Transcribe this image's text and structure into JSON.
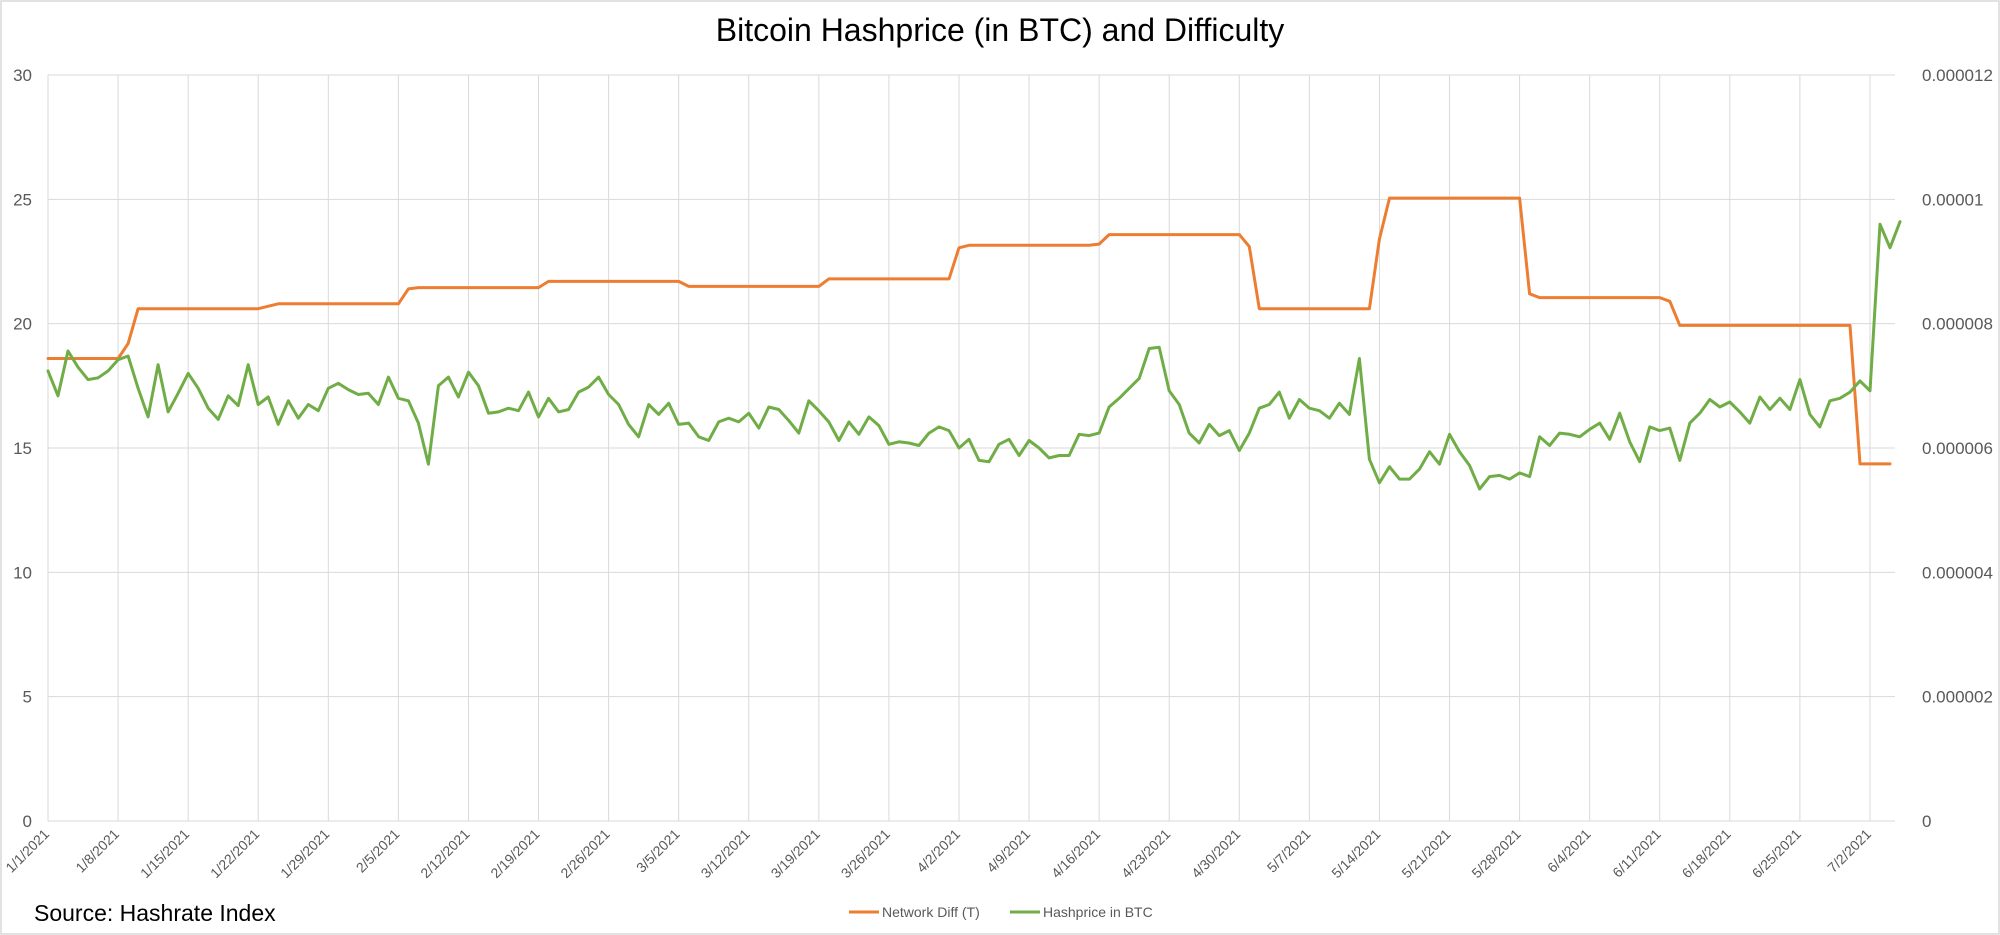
{
  "chart_data": {
    "type": "line",
    "title": "Bitcoin Hashprice (in BTC) and Difficulty",
    "source": "Source: Hashrate Index",
    "grid": true,
    "legend_position": "bottom",
    "y_left": {
      "min": 0,
      "max": 30,
      "ticks": [
        "0",
        "5",
        "10",
        "15",
        "20",
        "25",
        "30"
      ]
    },
    "y_right": {
      "min": 0,
      "max": 1.2e-05,
      "ticks": [
        "0",
        "0.000002",
        "0.000004",
        "0.000006",
        "0.000008",
        "0.00001",
        "0.000012"
      ]
    },
    "x_ticks": [
      "1/1/2021",
      "1/8/2021",
      "1/15/2021",
      "1/22/2021",
      "1/29/2021",
      "2/5/2021",
      "2/12/2021",
      "2/19/2021",
      "2/26/2021",
      "3/5/2021",
      "3/12/2021",
      "3/19/2021",
      "3/26/2021",
      "4/2/2021",
      "4/9/2021",
      "4/16/2021",
      "4/23/2021",
      "4/30/2021",
      "5/7/2021",
      "5/14/2021",
      "5/21/2021",
      "5/28/2021",
      "6/4/2021",
      "6/11/2021",
      "6/18/2021",
      "6/25/2021",
      "7/2/2021"
    ],
    "x_start": "1/1/2021",
    "series": [
      {
        "name": "Network Diff (T)",
        "axis": "left",
        "color": "#ed7d31",
        "points": [
          [
            "1/1/2021",
            18.6
          ],
          [
            "1/8/2021",
            18.6
          ],
          [
            "1/9/2021",
            19.2
          ],
          [
            "1/10/2021",
            20.6
          ],
          [
            "1/22/2021",
            20.6
          ],
          [
            "1/24/2021",
            20.8
          ],
          [
            "2/5/2021",
            20.8
          ],
          [
            "2/6/2021",
            21.4
          ],
          [
            "2/7/2021",
            21.45
          ],
          [
            "2/19/2021",
            21.45
          ],
          [
            "2/20/2021",
            21.7
          ],
          [
            "3/5/2021",
            21.7
          ],
          [
            "3/6/2021",
            21.5
          ],
          [
            "3/19/2021",
            21.5
          ],
          [
            "3/20/2021",
            21.8
          ],
          [
            "4/1/2021",
            21.8
          ],
          [
            "4/2/2021",
            23.05
          ],
          [
            "4/3/2021",
            23.15
          ],
          [
            "4/15/2021",
            23.15
          ],
          [
            "4/16/2021",
            23.2
          ],
          [
            "4/17/2021",
            23.58
          ],
          [
            "4/30/2021",
            23.58
          ],
          [
            "5/1/2021",
            23.1
          ],
          [
            "5/2/2021",
            20.6
          ],
          [
            "5/13/2021",
            20.6
          ],
          [
            "5/14/2021",
            23.4
          ],
          [
            "5/15/2021",
            25.05
          ],
          [
            "5/28/2021",
            25.05
          ],
          [
            "5/29/2021",
            21.2
          ],
          [
            "5/30/2021",
            21.05
          ],
          [
            "6/11/2021",
            21.05
          ],
          [
            "6/12/2021",
            20.9
          ],
          [
            "6/13/2021",
            19.93
          ],
          [
            "6/30/2021",
            19.93
          ],
          [
            "7/1/2021",
            14.36
          ],
          [
            "7/4/2021",
            14.36
          ]
        ]
      },
      {
        "name": "Hashprice in BTC",
        "axis": "right",
        "color": "#70ad47",
        "values_start": "1/1/2021",
        "values": [
          7.24e-06,
          6.84e-06,
          7.56e-06,
          7.3e-06,
          7.1e-06,
          7.13e-06,
          7.24e-06,
          7.42e-06,
          7.48e-06,
          6.96e-06,
          6.5e-06,
          7.34e-06,
          6.58e-06,
          6.88e-06,
          7.2e-06,
          6.96e-06,
          6.64e-06,
          6.46e-06,
          6.84e-06,
          6.68e-06,
          7.34e-06,
          6.7e-06,
          6.82e-06,
          6.38e-06,
          6.76e-06,
          6.48e-06,
          6.7e-06,
          6.6e-06,
          6.96e-06,
          7.04e-06,
          6.94e-06,
          6.86e-06,
          6.88e-06,
          6.7e-06,
          7.14e-06,
          6.8e-06,
          6.76e-06,
          6.4e-06,
          5.74e-06,
          7e-06,
          7.14e-06,
          6.82e-06,
          7.22e-06,
          7e-06,
          6.56e-06,
          6.58e-06,
          6.64e-06,
          6.6e-06,
          6.9e-06,
          6.5e-06,
          6.8e-06,
          6.58e-06,
          6.62e-06,
          6.9e-06,
          6.98e-06,
          7.14e-06,
          6.86e-06,
          6.7e-06,
          6.38e-06,
          6.18e-06,
          6.7e-06,
          6.54e-06,
          6.72e-06,
          6.38e-06,
          6.4e-06,
          6.18e-06,
          6.12e-06,
          6.42e-06,
          6.48e-06,
          6.42e-06,
          6.56e-06,
          6.32e-06,
          6.66e-06,
          6.62e-06,
          6.44e-06,
          6.24e-06,
          6.76e-06,
          6.6e-06,
          6.42e-06,
          6.12e-06,
          6.42e-06,
          6.22e-06,
          6.5e-06,
          6.36e-06,
          6.06e-06,
          6.1e-06,
          6.08e-06,
          6.04e-06,
          6.24e-06,
          6.34e-06,
          6.28e-06,
          6e-06,
          6.14e-06,
          5.8e-06,
          5.78e-06,
          6.06e-06,
          6.14e-06,
          5.88e-06,
          6.12e-06,
          6e-06,
          5.84e-06,
          5.88e-06,
          5.88e-06,
          6.22e-06,
          6.2e-06,
          6.24e-06,
          6.66e-06,
          6.8e-06,
          6.96e-06,
          7.12e-06,
          7.6e-06,
          7.62e-06,
          6.92e-06,
          6.7e-06,
          6.24e-06,
          6.08e-06,
          6.38e-06,
          6.2e-06,
          6.28e-06,
          5.96e-06,
          6.24e-06,
          6.64e-06,
          6.7e-06,
          6.9e-06,
          6.48e-06,
          6.78e-06,
          6.64e-06,
          6.6e-06,
          6.48e-06,
          6.72e-06,
          6.54e-06,
          7.44e-06,
          5.82e-06,
          5.44e-06,
          5.7e-06,
          5.5e-06,
          5.5e-06,
          5.66e-06,
          5.94e-06,
          5.74e-06,
          6.22e-06,
          5.94e-06,
          5.72e-06,
          5.34e-06,
          5.54e-06,
          5.56e-06,
          5.5e-06,
          5.6e-06,
          5.54e-06,
          6.18e-06,
          6.04e-06,
          6.24e-06,
          6.22e-06,
          6.18e-06,
          6.3e-06,
          6.4e-06,
          6.14e-06,
          6.56e-06,
          6.1e-06,
          5.78e-06,
          6.34e-06,
          6.28e-06,
          6.32e-06,
          5.8e-06,
          6.4e-06,
          6.56e-06,
          6.78e-06,
          6.66e-06,
          6.74e-06,
          6.58e-06,
          6.4e-06,
          6.82e-06,
          6.62e-06,
          6.8e-06,
          6.62e-06,
          7.1e-06,
          6.54e-06,
          6.34e-06,
          6.76e-06,
          6.8e-06,
          6.9e-06,
          7.08e-06,
          6.92e-06,
          9.6e-06,
          9.22e-06,
          9.64e-06
        ]
      }
    ]
  }
}
